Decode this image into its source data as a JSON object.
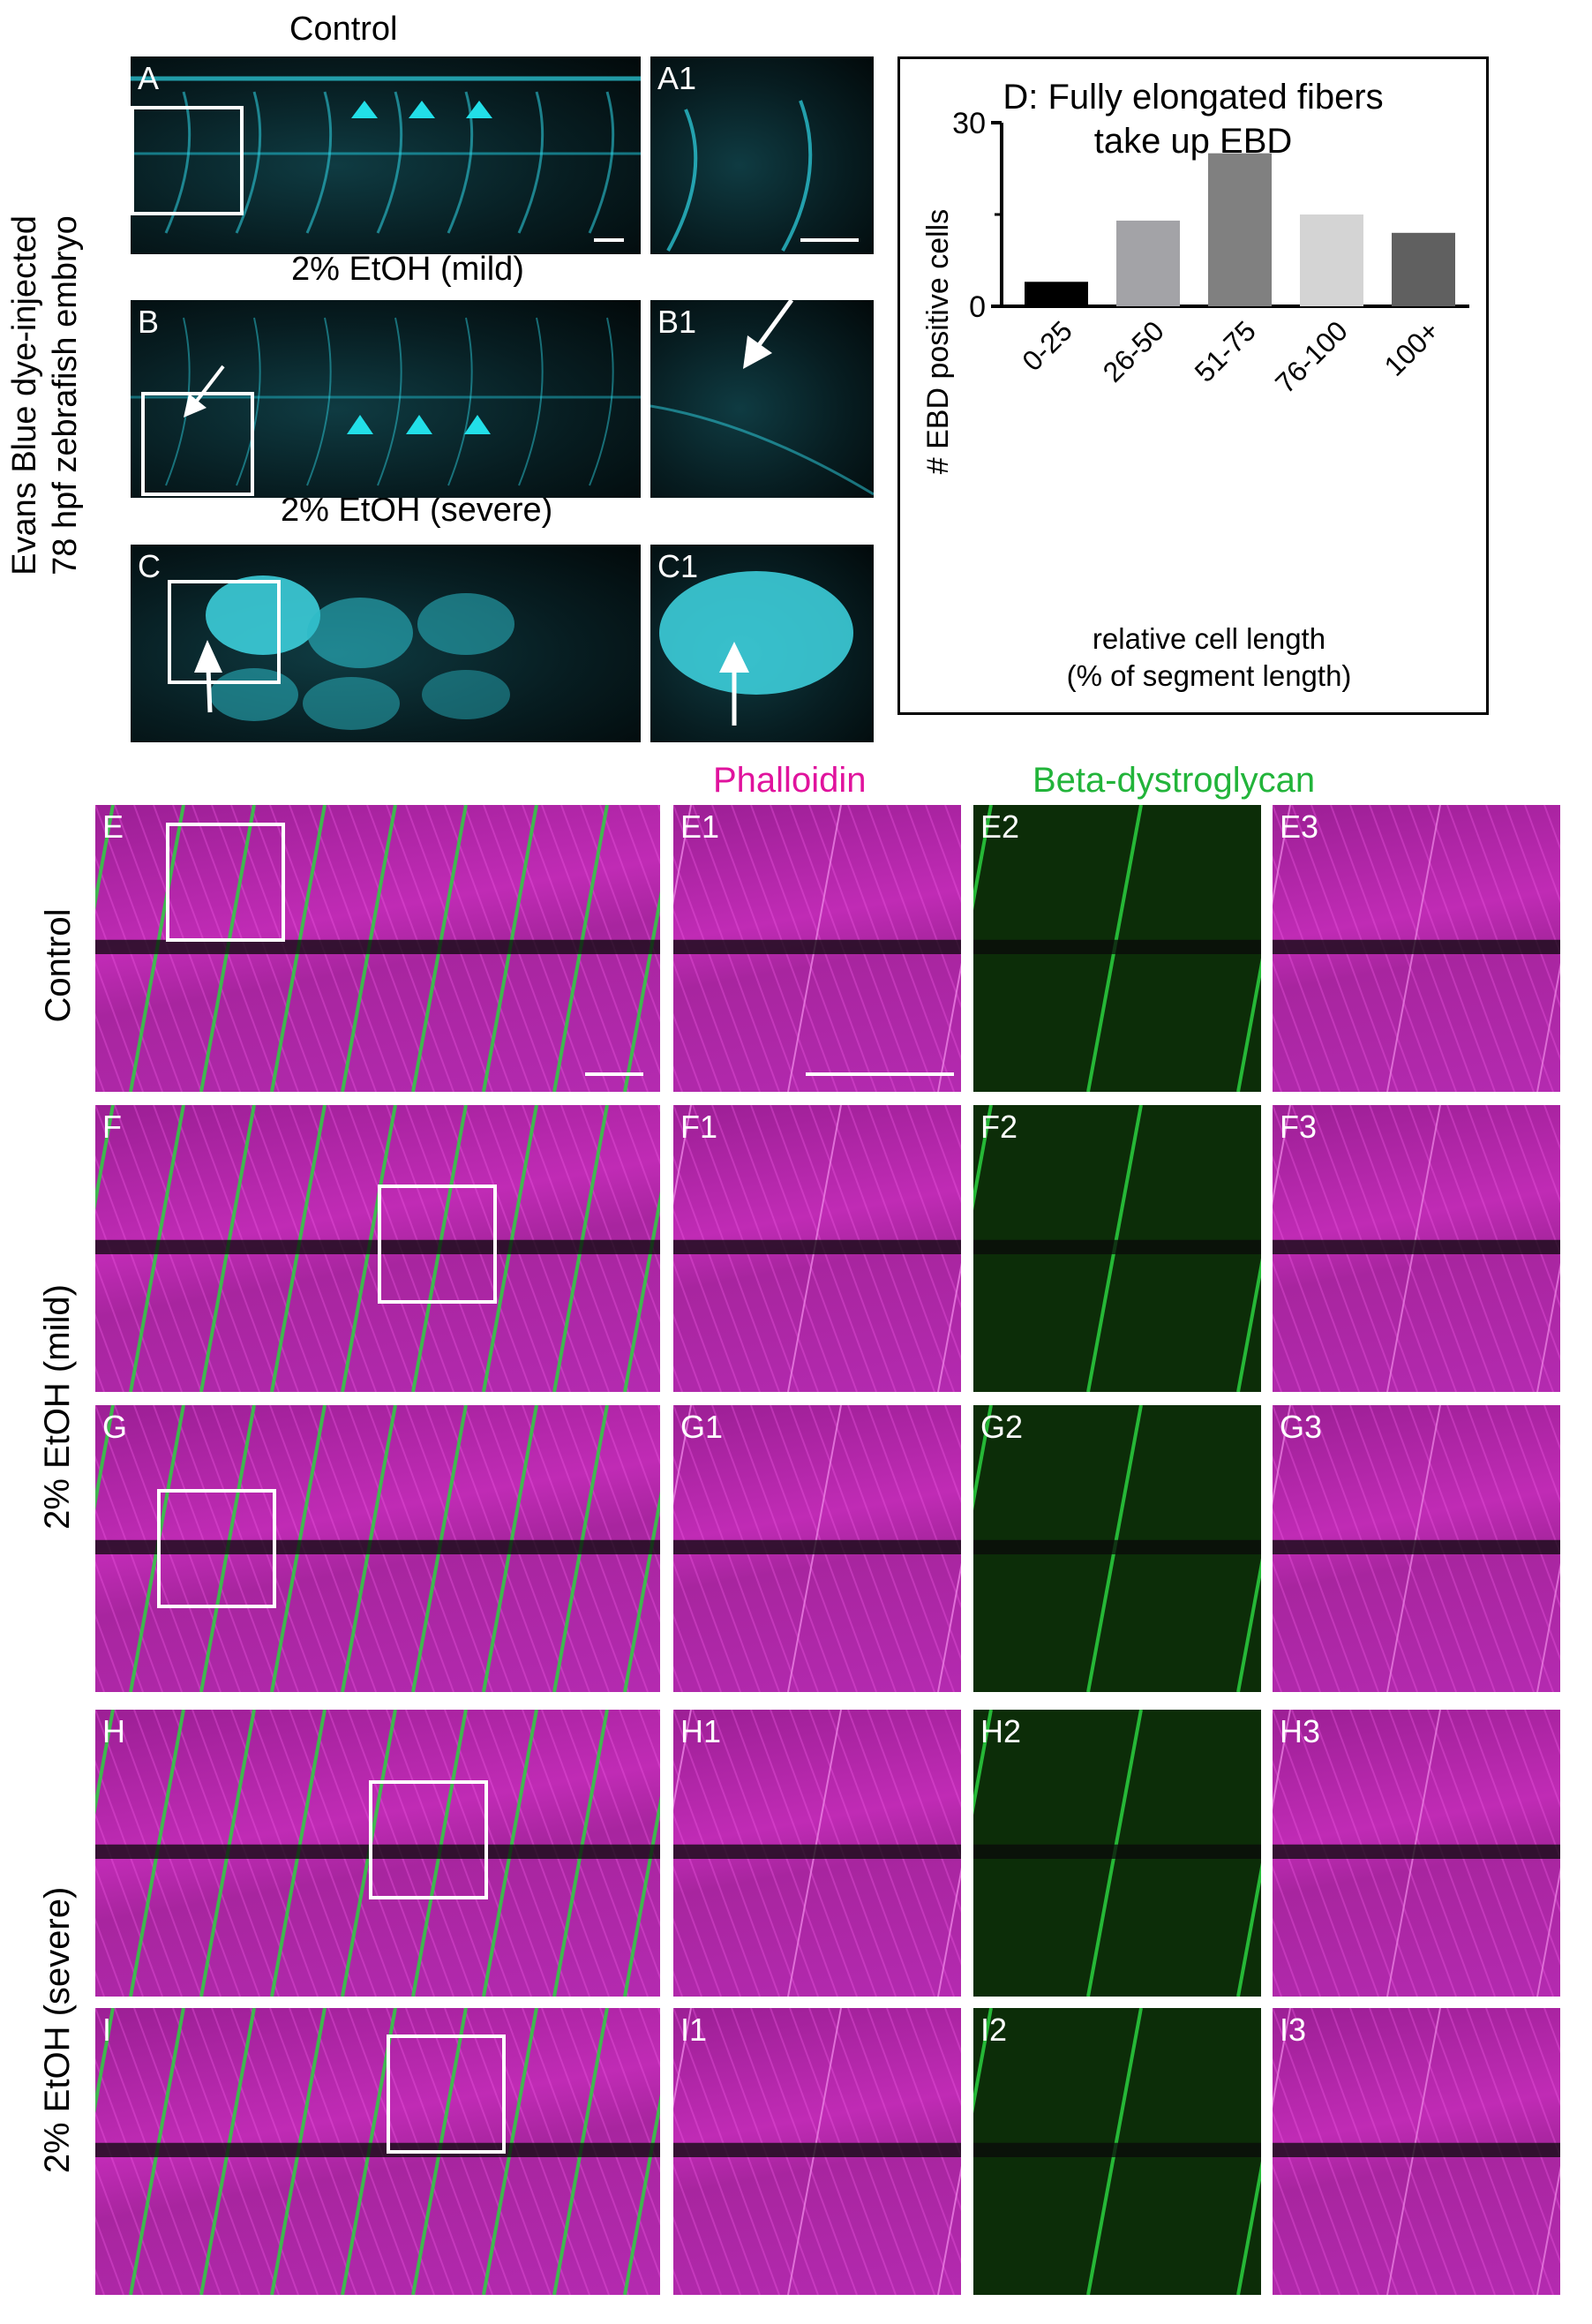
{
  "top": {
    "row_titles": [
      "Control",
      "2% EtOH (mild)",
      "2% EtOH (severe)"
    ],
    "side_label": [
      "Evans Blue dye-injected",
      "78 hpf zebrafish embryo"
    ],
    "panels": [
      "A",
      "A1",
      "B",
      "B1",
      "C",
      "C1"
    ]
  },
  "chart_title": [
    "D: Fully elongated fibers",
    "take up EBD"
  ],
  "chart_data": {
    "type": "bar",
    "title": "D: Fully elongated fibers take up EBD",
    "categories": [
      "0-25",
      "26-50",
      "51-75",
      "76-100",
      "100+"
    ],
    "values": [
      4,
      14,
      25,
      15,
      12
    ],
    "colors": [
      "#000000",
      "#a3a3a7",
      "#808080",
      "#d4d4d4",
      "#606060"
    ],
    "xlabel": [
      "relative cell length",
      "(% of segment length)"
    ],
    "ylabel": "# EBD positive cells",
    "ylim": [
      0,
      30
    ],
    "yticks": [
      "0",
      "30"
    ],
    "grid": false
  },
  "bottom": {
    "channel_headers": {
      "phalloidin": "Phalloidin",
      "beta": "Beta-dystroglycan"
    },
    "channel_colors": {
      "phalloidin": "#e0139d",
      "beta": "#22b43a"
    },
    "side_labels": {
      "control": "Control",
      "mild": "2% EtOH (mild)",
      "severe": "2% EtOH (severe)"
    },
    "rows": [
      {
        "main": "E",
        "subs": [
          "E1",
          "E2",
          "E3"
        ]
      },
      {
        "main": "F",
        "subs": [
          "F1",
          "F2",
          "F3"
        ]
      },
      {
        "main": "G",
        "subs": [
          "G1",
          "G2",
          "G3"
        ]
      },
      {
        "main": "H",
        "subs": [
          "H1",
          "H2",
          "H3"
        ]
      },
      {
        "main": "I",
        "subs": [
          "I1",
          "I2",
          "I3"
        ]
      }
    ]
  }
}
